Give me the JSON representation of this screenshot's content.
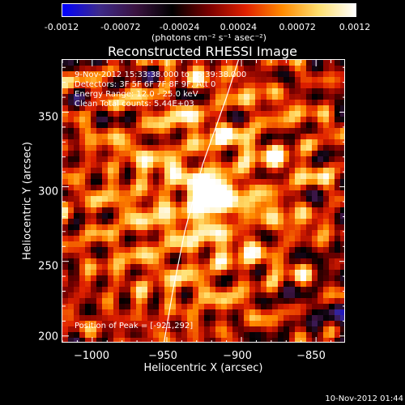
{
  "colorbar": {
    "ticks": [
      "-0.0012",
      "-0.00072",
      "-0.00024",
      "0.00024",
      "0.00072",
      "0.0012"
    ],
    "units": "(photons cm⁻² s⁻¹ asec⁻²)",
    "range": [
      -0.0012,
      0.0012
    ]
  },
  "chart_data": {
    "type": "heatmap",
    "title": "Reconstructed RHESSI Image",
    "xlabel": "Heliocentric X (arcsec)",
    "ylabel": "Heliocentric Y (arcsec)",
    "xlim": [
      -1020,
      -830
    ],
    "ylim": [
      195,
      385
    ],
    "xticks": [
      -1000,
      -950,
      -900,
      -850
    ],
    "yticks": [
      200,
      250,
      300,
      350
    ],
    "xtick_labels": [
      "−1000",
      "−950",
      "−900",
      "−850"
    ],
    "ytick_labels": [
      "200",
      "250",
      "300",
      "350"
    ],
    "peak": {
      "x": -921,
      "y": 292
    },
    "limb_points": [
      [
        -952,
        195
      ],
      [
        -946,
        230
      ],
      [
        -938,
        270
      ],
      [
        -926,
        315
      ],
      [
        -910,
        360
      ],
      [
        -902,
        385
      ]
    ],
    "annotations": [
      "9-Nov-2012 15:33:38.000 to 15:39:38.000",
      "Detectors: 3F 5F 6F 7F 8F 9F, Att 0",
      "Energy Range: 12.0 - 25.0 keV",
      "Clean     Total counts: 5.44E+03"
    ],
    "peak_label": "Position of Peak = [-921,292]"
  },
  "timestamp": "10-Nov-2012 01:44",
  "colors": {
    "colorbar_stops": [
      "#0000ff",
      "#3d2a8a",
      "#3a1340",
      "#000000",
      "#7a0000",
      "#e02000",
      "#ff8a00",
      "#ffe070",
      "#ffffff"
    ]
  }
}
